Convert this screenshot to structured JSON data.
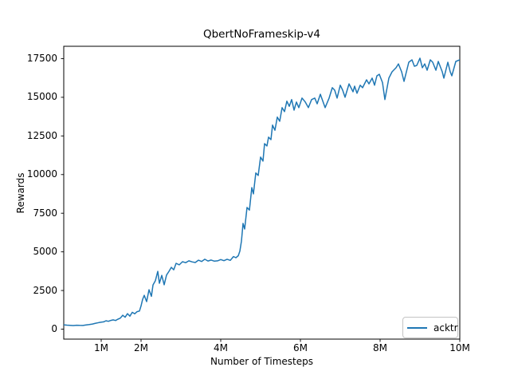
{
  "figure": {
    "background": "#ffffff"
  },
  "chart_data": {
    "type": "line",
    "title": "QbertNoFrameskip-v4",
    "xlabel": "Number of Timesteps",
    "ylabel": "Rewards",
    "x_unit": "millions of timesteps",
    "xlim": [
      0.06,
      10.0
    ],
    "ylim": [
      -650,
      18300
    ],
    "grid": false,
    "x_ticks": [
      {
        "value": 1,
        "label": "1M"
      },
      {
        "value": 2,
        "label": "2M"
      },
      {
        "value": 4,
        "label": "4M"
      },
      {
        "value": 6,
        "label": "6M"
      },
      {
        "value": 8,
        "label": "8M"
      },
      {
        "value": 10,
        "label": "10M"
      }
    ],
    "y_ticks": [
      {
        "value": 0,
        "label": "0"
      },
      {
        "value": 2500,
        "label": "2500"
      },
      {
        "value": 5000,
        "label": "5000"
      },
      {
        "value": 7500,
        "label": "7500"
      },
      {
        "value": 10000,
        "label": "10000"
      },
      {
        "value": 12500,
        "label": "12500"
      },
      {
        "value": 15000,
        "label": "15000"
      },
      {
        "value": 17500,
        "label": "17500"
      }
    ],
    "legend": {
      "position": "lower right",
      "entries": [
        {
          "label": "acktr",
          "color": "#1f77b4"
        }
      ]
    },
    "series": [
      {
        "name": "acktr",
        "color": "#1f77b4",
        "x": [
          0.06,
          0.14,
          0.22,
          0.3,
          0.38,
          0.46,
          0.54,
          0.62,
          0.7,
          0.78,
          0.86,
          0.94,
          1.0,
          1.06,
          1.12,
          1.18,
          1.24,
          1.3,
          1.36,
          1.42,
          1.48,
          1.54,
          1.6,
          1.66,
          1.72,
          1.78,
          1.84,
          1.9,
          1.96,
          2.0,
          2.04,
          2.08,
          2.14,
          2.2,
          2.26,
          2.3,
          2.36,
          2.42,
          2.46,
          2.52,
          2.58,
          2.64,
          2.7,
          2.76,
          2.82,
          2.88,
          2.96,
          3.04,
          3.12,
          3.2,
          3.28,
          3.36,
          3.44,
          3.52,
          3.6,
          3.68,
          3.76,
          3.84,
          3.92,
          4.0,
          4.08,
          4.16,
          4.24,
          4.32,
          4.38,
          4.44,
          4.48,
          4.52,
          4.56,
          4.6,
          4.66,
          4.72,
          4.78,
          4.82,
          4.88,
          4.94,
          5.0,
          5.06,
          5.1,
          5.16,
          5.2,
          5.26,
          5.3,
          5.36,
          5.42,
          5.48,
          5.54,
          5.6,
          5.66,
          5.72,
          5.78,
          5.84,
          5.9,
          5.96,
          6.04,
          6.12,
          6.2,
          6.28,
          6.36,
          6.42,
          6.5,
          6.62,
          6.72,
          6.8,
          6.86,
          6.92,
          7.0,
          7.06,
          7.12,
          7.22,
          7.32,
          7.36,
          7.42,
          7.5,
          7.56,
          7.66,
          7.72,
          7.8,
          7.86,
          7.92,
          7.98,
          8.06,
          8.12,
          8.22,
          8.3,
          8.4,
          8.46,
          8.54,
          8.6,
          8.72,
          8.8,
          8.86,
          8.92,
          9.0,
          9.06,
          9.12,
          9.18,
          9.26,
          9.32,
          9.4,
          9.46,
          9.56,
          9.6,
          9.7,
          9.76,
          9.8,
          9.9,
          10.0
        ],
        "y": [
          280,
          260,
          250,
          230,
          255,
          245,
          235,
          270,
          295,
          330,
          380,
          425,
          450,
          470,
          540,
          505,
          565,
          600,
          560,
          645,
          710,
          900,
          770,
          1000,
          840,
          1090,
          990,
          1130,
          1170,
          1500,
          1930,
          2190,
          1780,
          2550,
          2120,
          2860,
          3140,
          3740,
          2970,
          3480,
          2870,
          3500,
          3740,
          4000,
          3840,
          4260,
          4160,
          4360,
          4300,
          4420,
          4350,
          4310,
          4460,
          4380,
          4520,
          4410,
          4470,
          4400,
          4420,
          4500,
          4430,
          4520,
          4450,
          4700,
          4620,
          4750,
          5050,
          5700,
          6840,
          6480,
          7870,
          7700,
          9160,
          8750,
          10100,
          9940,
          11130,
          10870,
          12000,
          11850,
          12420,
          12260,
          13200,
          12870,
          13720,
          13450,
          14330,
          14070,
          14750,
          14420,
          14850,
          14170,
          14690,
          14330,
          14950,
          14700,
          14330,
          14850,
          14950,
          14580,
          15200,
          14330,
          14950,
          15620,
          15460,
          14950,
          15780,
          15460,
          15000,
          15870,
          15360,
          15720,
          15260,
          15780,
          15620,
          16130,
          15870,
          16240,
          15780,
          16390,
          16490,
          15950,
          14850,
          16240,
          16650,
          16910,
          17160,
          16650,
          16030,
          17270,
          17420,
          17010,
          17060,
          17530,
          16910,
          17160,
          16750,
          17420,
          17270,
          16750,
          17320,
          16650,
          16240,
          17270,
          16650,
          16390,
          17320,
          17420
        ]
      }
    ]
  }
}
